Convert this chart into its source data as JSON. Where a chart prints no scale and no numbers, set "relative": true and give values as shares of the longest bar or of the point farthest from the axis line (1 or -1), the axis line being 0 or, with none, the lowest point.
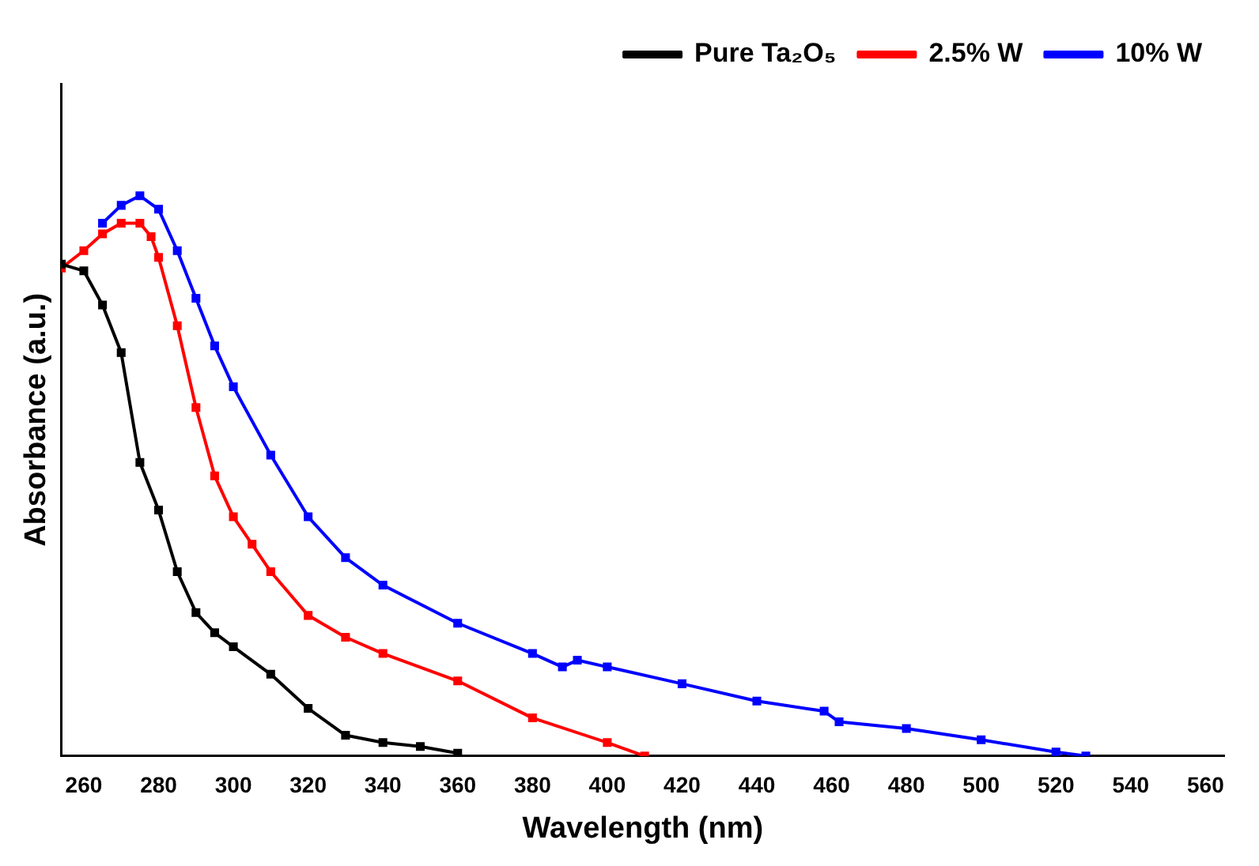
{
  "chart_data": {
    "type": "line",
    "xlabel": "Wavelength (nm)",
    "ylabel": "Absorbance (a.u.)",
    "relative": true,
    "xlim": [
      254,
      565
    ],
    "xticks": [
      260,
      280,
      300,
      320,
      340,
      360,
      380,
      400,
      420,
      440,
      460,
      480,
      500,
      520,
      540,
      560
    ],
    "legend": "top right",
    "marker": "square",
    "grid": false,
    "series": [
      {
        "name": "Pure Ta₂O₅",
        "color": "#000000",
        "x": [
          254,
          260,
          265,
          270,
          275,
          280,
          285,
          290,
          295,
          300,
          310,
          320,
          330,
          340,
          350,
          360
        ],
        "values": [
          0.878,
          0.866,
          0.805,
          0.72,
          0.524,
          0.439,
          0.329,
          0.256,
          0.22,
          0.195,
          0.146,
          0.085,
          0.037,
          0.024,
          0.017,
          0.005
        ]
      },
      {
        "name": "2.5% W",
        "color": "#ff0000",
        "x": [
          254,
          260,
          265,
          270,
          275,
          278,
          280,
          285,
          290,
          295,
          300,
          305,
          310,
          320,
          330,
          340,
          360,
          380,
          400,
          410
        ],
        "values": [
          0.871,
          0.902,
          0.932,
          0.951,
          0.951,
          0.927,
          0.89,
          0.768,
          0.622,
          0.5,
          0.427,
          0.378,
          0.329,
          0.251,
          0.212,
          0.183,
          0.134,
          0.068,
          0.024,
          0
        ]
      },
      {
        "name": "10% W",
        "color": "#0000ff",
        "x": [
          265,
          270,
          275,
          280,
          285,
          290,
          295,
          300,
          310,
          320,
          330,
          340,
          360,
          380,
          388,
          392,
          400,
          420,
          440,
          458,
          462,
          480,
          500,
          520,
          528
        ],
        "values": [
          0.951,
          0.983,
          1,
          0.976,
          0.902,
          0.817,
          0.732,
          0.659,
          0.537,
          0.427,
          0.354,
          0.305,
          0.237,
          0.183,
          0.159,
          0.171,
          0.159,
          0.129,
          0.098,
          0.08,
          0.061,
          0.049,
          0.029,
          0.007,
          0
        ]
      }
    ]
  }
}
